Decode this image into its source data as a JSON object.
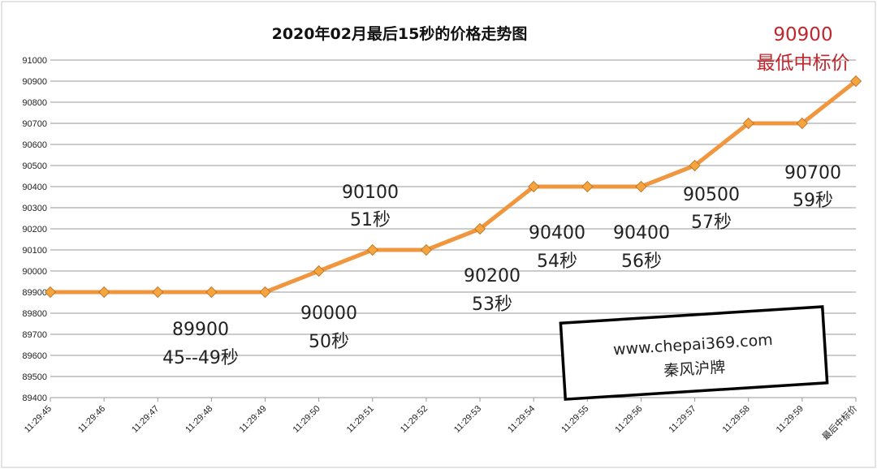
{
  "chart_data": {
    "type": "line",
    "title": "2020年02月最后15秒的价格走势图",
    "categories": [
      "11:29:45",
      "11:29:46",
      "11:29:47",
      "11:29:48",
      "11:29:49",
      "11:29:50",
      "11:29:51",
      "11:29:52",
      "11:29:53",
      "11:29:54",
      "11:29:55",
      "11:29:56",
      "11:29:57",
      "11:29:58",
      "11:29:59",
      "最后中标价"
    ],
    "series": [
      {
        "values": [
          89900,
          89900,
          89900,
          89900,
          89900,
          90000,
          90100,
          90100,
          90200,
          90400,
          90400,
          90400,
          90500,
          90700,
          90700,
          90900
        ]
      }
    ],
    "ylim": [
      89400,
      91000
    ],
    "yticks": [
      89400,
      89500,
      89600,
      89700,
      89800,
      89900,
      90000,
      90100,
      90200,
      90300,
      90400,
      90500,
      90600,
      90700,
      90800,
      90900,
      91000
    ],
    "grid": true,
    "line_color": "#f0963e",
    "marker_color": "#f5a43e",
    "annotations": [
      {
        "lines": [
          "90900",
          "最低中标价"
        ],
        "color": "#c0262d"
      },
      {
        "lines": [
          "90100",
          "51秒"
        ]
      },
      {
        "lines": [
          "90200",
          "53秒"
        ]
      },
      {
        "lines": [
          "90400",
          "54秒"
        ]
      },
      {
        "lines": [
          "90400",
          "56秒"
        ]
      },
      {
        "lines": [
          "90500",
          "57秒"
        ]
      },
      {
        "lines": [
          "90700",
          "59秒"
        ]
      },
      {
        "lines": [
          "90000",
          "50秒"
        ]
      },
      {
        "lines": [
          "89900",
          "45--49秒"
        ]
      }
    ]
  },
  "stamp": {
    "line1": "www.chepai369.com",
    "line2": "秦风沪牌"
  }
}
